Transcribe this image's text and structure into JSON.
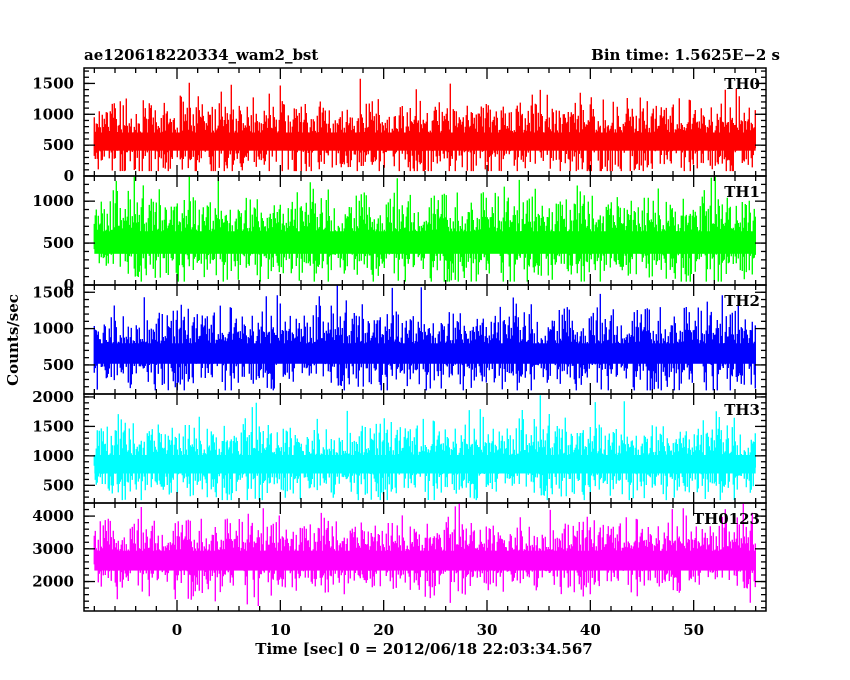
{
  "chart_data": {
    "type": "line",
    "title": "ae120618220334_wam2_bst",
    "subtitle": "Bin time: 1.5625E−2 s",
    "xlabel": "Time [sec] 0 = 2012/06/18 22:03:34.567",
    "ylabel": "Counts/sec",
    "xlim": [
      -9,
      57
    ],
    "x_range_data": [
      -8,
      56
    ],
    "x_ticks": [
      0,
      10,
      20,
      30,
      40,
      50
    ],
    "x_minor_step": 2,
    "panels": [
      {
        "name": "TH0",
        "color": "#ff0000",
        "ylim": [
          0,
          1750
        ],
        "y_ticks": [
          0,
          500,
          1000,
          1500
        ],
        "y_minor_step": 100,
        "baseline": 500,
        "mean": 600,
        "spread": 300,
        "min": 80,
        "max": 1750
      },
      {
        "name": "TH1",
        "color": "#00ff00",
        "ylim": [
          0,
          1300
        ],
        "y_ticks": [
          0,
          500,
          1000
        ],
        "y_minor_step": 100,
        "baseline": 450,
        "mean": 550,
        "spread": 260,
        "min": 40,
        "max": 1300
      },
      {
        "name": "TH2",
        "color": "#0000ff",
        "ylim": [
          100,
          1600
        ],
        "y_ticks": [
          500,
          1000,
          1500
        ],
        "y_minor_step": 100,
        "baseline": 600,
        "mean": 700,
        "spread": 280,
        "min": 150,
        "max": 1600
      },
      {
        "name": "TH3",
        "color": "#00ffff",
        "ylim": [
          200,
          2050
        ],
        "y_ticks": [
          500,
          1000,
          1500,
          2000
        ],
        "y_minor_step": 100,
        "baseline": 800,
        "mean": 900,
        "spread": 330,
        "min": 250,
        "max": 2050
      },
      {
        "name": "TH0123",
        "color": "#ff00ff",
        "ylim": [
          1100,
          4400
        ],
        "y_ticks": [
          2000,
          3000,
          4000
        ],
        "y_minor_step": 200,
        "baseline": 2500,
        "mean": 2750,
        "spread": 550,
        "min": 1150,
        "max": 4400
      }
    ]
  }
}
